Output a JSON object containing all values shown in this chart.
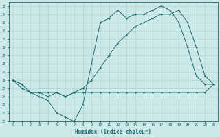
{
  "xlabel": "Humidex (Indice chaleur)",
  "ylabel": "",
  "xlim": [
    -0.5,
    23.5
  ],
  "ylim": [
    21,
    35.5
  ],
  "yticks": [
    21,
    22,
    23,
    24,
    25,
    26,
    27,
    28,
    29,
    30,
    31,
    32,
    33,
    34,
    35
  ],
  "xticks": [
    0,
    1,
    2,
    3,
    4,
    5,
    6,
    7,
    8,
    9,
    10,
    11,
    12,
    13,
    14,
    15,
    16,
    17,
    18,
    19,
    20,
    21,
    22,
    23
  ],
  "bg_color": "#cce8e8",
  "grid_color": "#aacfcf",
  "line_color": "#1a6b6b",
  "line1_x": [
    0,
    1,
    2,
    3,
    4,
    5,
    6,
    7,
    8,
    9,
    10,
    11,
    12,
    13,
    14,
    15,
    16,
    17,
    18,
    19,
    20,
    21,
    22,
    23
  ],
  "line1_y": [
    26.0,
    25.5,
    24.5,
    24.0,
    23.5,
    22.0,
    21.5,
    21.0,
    23.0,
    28.0,
    33.0,
    33.5,
    34.5,
    33.5,
    34.0,
    34.0,
    34.5,
    35.0,
    34.5,
    33.0,
    30.0,
    26.5,
    25.5,
    25.5
  ],
  "line2_x": [
    0,
    1,
    2,
    3,
    4,
    5,
    6,
    7,
    8,
    9,
    10,
    11,
    12,
    13,
    14,
    15,
    16,
    17,
    18,
    19,
    20,
    21,
    22,
    23
  ],
  "line2_y": [
    26.0,
    25.0,
    24.5,
    24.5,
    24.5,
    24.5,
    24.0,
    24.5,
    24.5,
    24.5,
    24.5,
    24.5,
    24.5,
    24.5,
    24.5,
    24.5,
    24.5,
    24.5,
    24.5,
    24.5,
    24.5,
    24.5,
    24.5,
    25.5
  ],
  "line3_x": [
    0,
    1,
    2,
    3,
    4,
    5,
    6,
    7,
    8,
    9,
    10,
    11,
    12,
    13,
    14,
    15,
    16,
    17,
    18,
    19,
    20,
    21,
    22,
    23
  ],
  "line3_y": [
    26.0,
    25.5,
    24.5,
    24.5,
    24.0,
    24.5,
    24.0,
    24.5,
    25.0,
    26.0,
    27.5,
    29.0,
    30.5,
    31.5,
    32.5,
    33.0,
    33.5,
    34.0,
    34.0,
    34.5,
    33.0,
    30.0,
    26.5,
    25.5
  ],
  "figwidth": 3.2,
  "figheight": 2.0,
  "dpi": 100
}
